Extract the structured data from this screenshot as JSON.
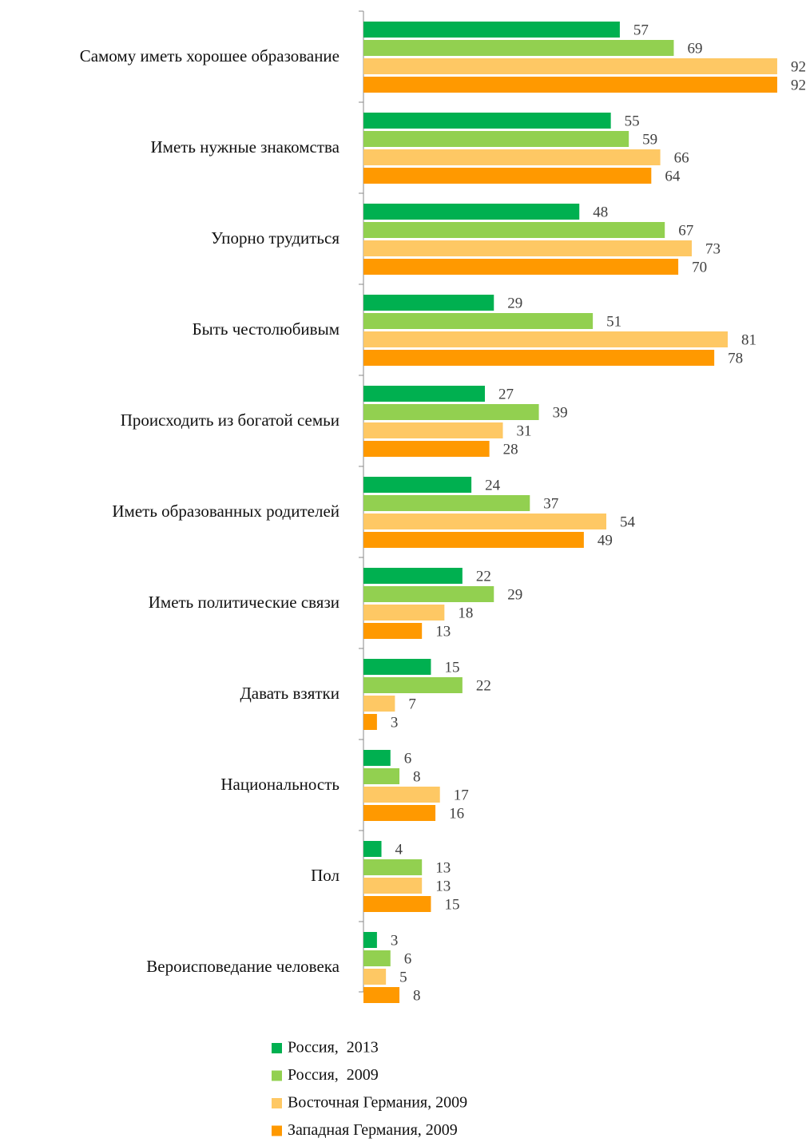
{
  "chart_data": {
    "type": "bar",
    "orientation": "horizontal",
    "categories": [
      "Самому иметь хорошее образование",
      "Иметь нужные  знакомства",
      "Упорно трудиться",
      "Быть честолюбивым",
      "Происходить  из богатой семьи",
      "Иметь образованных родителей",
      "Иметь политические  связи",
      "Давать взятки",
      "Национальность",
      "Пол",
      "Вероисповедание человека"
    ],
    "series": [
      {
        "name": "Россия,  2013",
        "color": "#00b050",
        "values": [
          57,
          55,
          48,
          29,
          27,
          24,
          22,
          15,
          6,
          4,
          3
        ]
      },
      {
        "name": "Россия,  2009",
        "color": "#92d050",
        "values": [
          69,
          59,
          67,
          51,
          39,
          37,
          29,
          22,
          8,
          13,
          6
        ]
      },
      {
        "name": "Восточная Германия, 2009",
        "color": "#fec864",
        "values": [
          92,
          66,
          73,
          81,
          31,
          54,
          18,
          7,
          17,
          13,
          5
        ]
      },
      {
        "name": "Западная Германия, 2009",
        "color": "#ff9900",
        "values": [
          92,
          64,
          70,
          78,
          28,
          49,
          13,
          3,
          16,
          15,
          8
        ]
      }
    ],
    "xlim": [
      0,
      100
    ]
  }
}
